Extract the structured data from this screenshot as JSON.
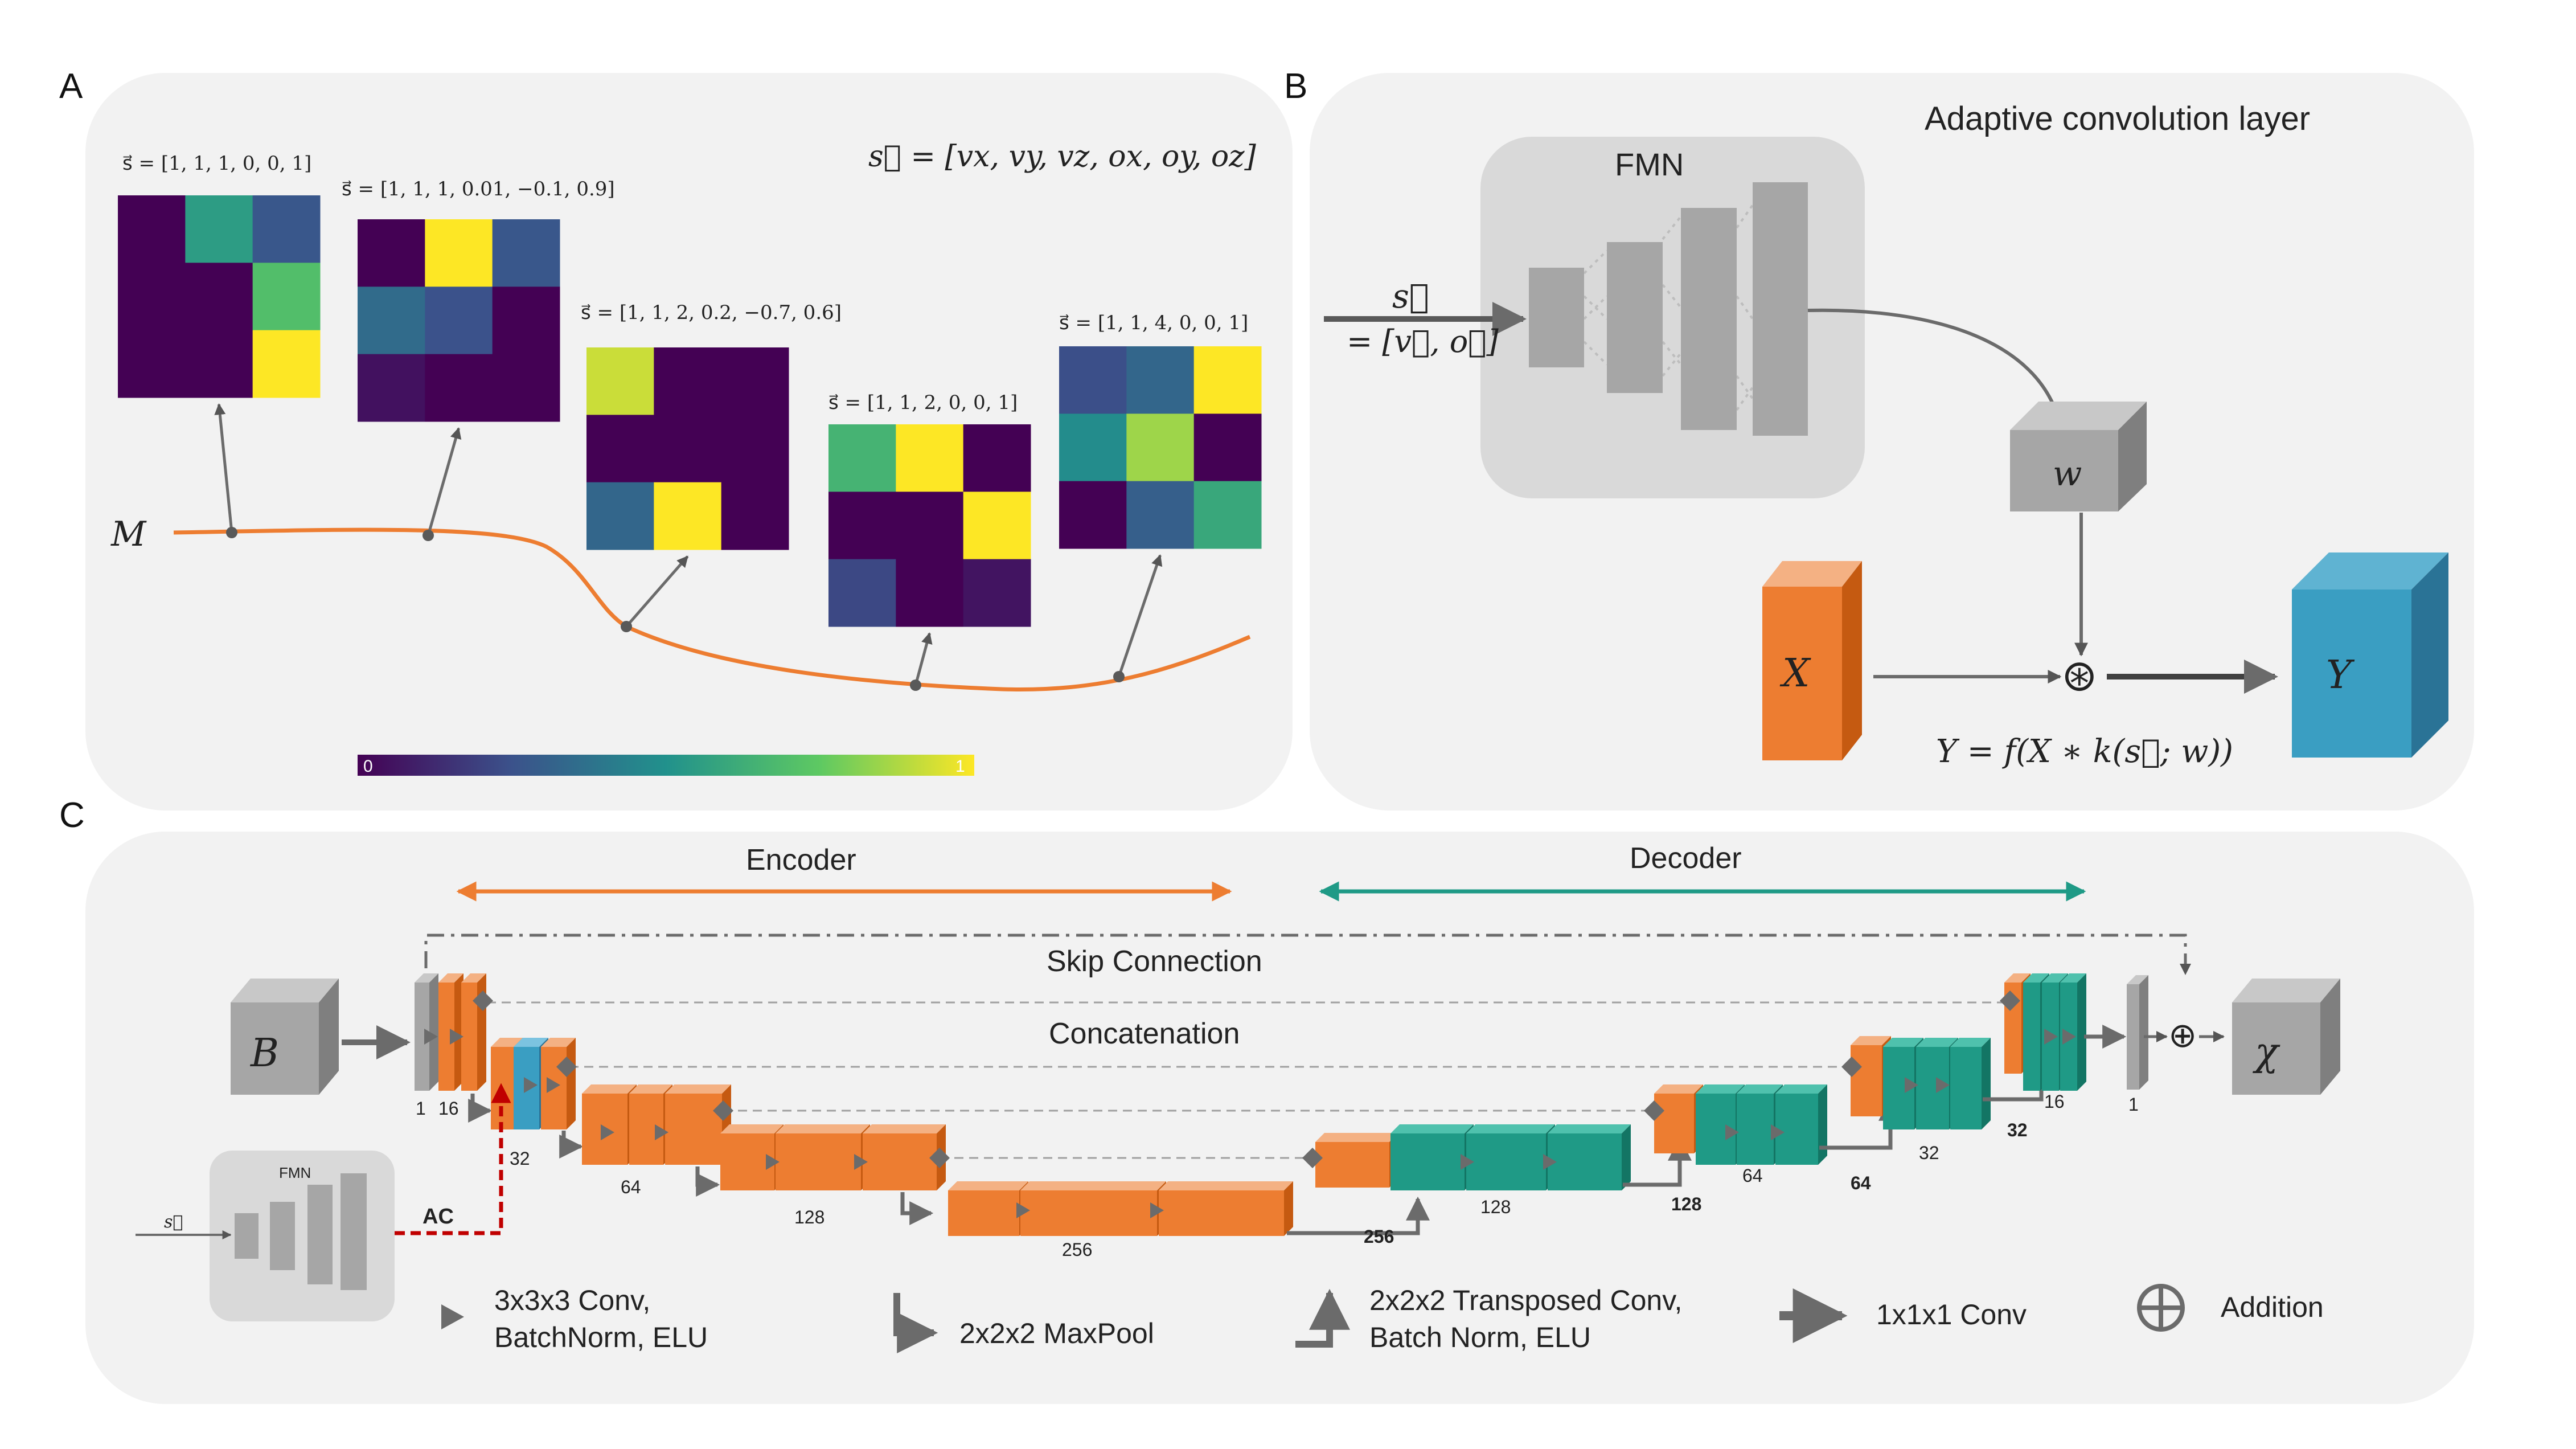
{
  "panels": {
    "a": {
      "letter": "A",
      "global_vector": "s⃗ = [vx, vy, vz, ox, oy, oz]",
      "manifold_label": "M",
      "colorbar": {
        "min_label": "0",
        "max_label": "1"
      },
      "kernels": [
        {
          "label": "s⃗ = [1, 1, 1, 0, 0, 1]",
          "cells": [
            [
              0.0,
              0.55,
              0.27
            ],
            [
              0.0,
              0.0,
              0.7
            ],
            [
              0.0,
              0.0,
              1.0
            ]
          ]
        },
        {
          "label": "s⃗ = [1, 1, 1, 0.01, −0.1, 0.9]",
          "cells": [
            [
              0.0,
              1.0,
              0.27
            ],
            [
              0.35,
              0.25,
              0.0
            ],
            [
              0.05,
              0.0,
              0.0
            ]
          ]
        },
        {
          "label": "s⃗ = [1, 1, 2, 0.2, −0.7, 0.6]",
          "cells": [
            [
              0.92,
              0.0,
              0.0
            ],
            [
              0.0,
              0.0,
              0.0
            ],
            [
              0.33,
              1.0,
              0.0
            ]
          ]
        },
        {
          "label": "s⃗ = [1, 1, 2, 0, 0, 1]",
          "cells": [
            [
              0.65,
              1.0,
              0.0
            ],
            [
              0.0,
              0.0,
              1.0
            ],
            [
              0.22,
              0.0,
              0.06
            ]
          ]
        },
        {
          "label": "s⃗ = [1, 1, 4, 0, 0, 1]",
          "cells": [
            [
              0.24,
              0.33,
              1.0
            ],
            [
              0.48,
              0.85,
              0.0
            ],
            [
              0.0,
              0.3,
              0.6
            ]
          ]
        }
      ]
    },
    "b": {
      "letter": "B",
      "title": "Adaptive convolution layer",
      "fmn_label": "FMN",
      "input_top": "s⃗",
      "input_bottom": "= [v⃗, o⃗]",
      "w_label": "w",
      "x_label": "X",
      "y_label": "Y",
      "conv_symbol": "⊛",
      "equation": "Y = f(X ∗ k(s⃗; w))"
    },
    "c": {
      "letter": "C",
      "encoder_label": "Encoder",
      "decoder_label": "Decoder",
      "skip_label": "Skip Connection",
      "concat_label": "Concatenation",
      "input_label": "B",
      "output_label": "χ",
      "fmn_label": "FMN",
      "s_label": "s⃗",
      "ac_label": "AC",
      "add_symbol": "⊕",
      "channels": {
        "c1": "1",
        "c16": "16",
        "c32": "32",
        "c64": "64",
        "c128": "128",
        "c256": "256",
        "d256": "256",
        "d128": "128",
        "d128b": "128",
        "d64": "64",
        "d64b": "64",
        "d32": "32",
        "d32b": "32",
        "d16": "16",
        "d1": "1"
      },
      "legend": {
        "conv": [
          "3x3x3 Conv,",
          "BatchNorm, ELU"
        ],
        "maxpool": "2x2x2 MaxPool",
        "tconv": [
          "2x2x2 Transposed Conv,",
          "Batch Norm, ELU"
        ],
        "conv1": "1x1x1 Conv",
        "addition": "Addition"
      }
    }
  },
  "colors": {
    "orange": "#ed7d31",
    "teal": "#1f9a86",
    "blue": "#3a9ec2",
    "panel_bg": "#f2f2f2",
    "gray_block": "#a6a6a6"
  }
}
